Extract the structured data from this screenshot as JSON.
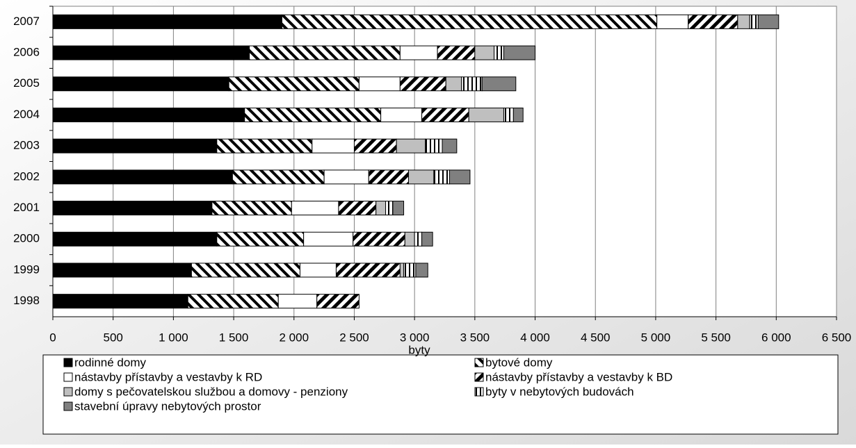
{
  "chart_data": {
    "type": "stacked-bar-horizontal",
    "xlabel": "byty",
    "categories": [
      "2007",
      "2006",
      "2005",
      "2004",
      "2003",
      "2002",
      "2001",
      "2000",
      "1999",
      "1998"
    ],
    "series": [
      {
        "name": "rodinné domy",
        "color": "#000000",
        "pattern": "solid",
        "values": [
          1900,
          1630,
          1460,
          1590,
          1360,
          1490,
          1320,
          1360,
          1150,
          1120
        ]
      },
      {
        "name": "bytové domy",
        "color": "#000000",
        "pattern": "hatch-down",
        "values": [
          3110,
          1250,
          1080,
          1130,
          790,
          760,
          660,
          720,
          900,
          750
        ]
      },
      {
        "name": "nástavby přístavby a vestavby k RD",
        "color": "#ffffff",
        "pattern": "solid",
        "values": [
          260,
          310,
          340,
          340,
          350,
          370,
          390,
          410,
          300,
          320
        ]
      },
      {
        "name": "nástavby přístavby a vestavby k BD",
        "color": "#000000",
        "pattern": "hatch-up",
        "values": [
          410,
          310,
          380,
          390,
          350,
          330,
          310,
          430,
          530,
          350
        ]
      },
      {
        "name": "domy s pečovatelskou službou a domovy - penziony",
        "color": "#bfbfbf",
        "pattern": "solid",
        "values": [
          100,
          160,
          130,
          290,
          240,
          210,
          80,
          80,
          30,
          0
        ]
      },
      {
        "name": "byty v nebytových budovách",
        "color": "#000000",
        "pattern": "vertical",
        "values": [
          70,
          80,
          170,
          80,
          140,
          130,
          60,
          60,
          100,
          0
        ]
      },
      {
        "name": "stavební úpravy nebytových prostor",
        "color": "#808080",
        "pattern": "solid",
        "values": [
          170,
          260,
          280,
          80,
          120,
          170,
          90,
          90,
          100,
          0
        ]
      }
    ],
    "xlim": [
      0,
      6500
    ],
    "xticks": [
      0,
      500,
      {
        "value": 1000,
        "label": "1 000"
      },
      {
        "value": 1500,
        "label": "1 500"
      },
      {
        "value": 2000,
        "label": "2 000"
      },
      {
        "value": 2500,
        "label": "2 500"
      },
      {
        "value": 3000,
        "label": "3 000"
      },
      {
        "value": 3500,
        "label": "3 500"
      },
      {
        "value": 4000,
        "label": "4 000"
      },
      {
        "value": 4500,
        "label": "4 500"
      },
      {
        "value": 5000,
        "label": "5 000"
      },
      {
        "value": 5500,
        "label": "5 500"
      },
      {
        "value": 6000,
        "label": "6 000"
      },
      {
        "value": 6500,
        "label": "6 500"
      }
    ],
    "grid": true
  }
}
